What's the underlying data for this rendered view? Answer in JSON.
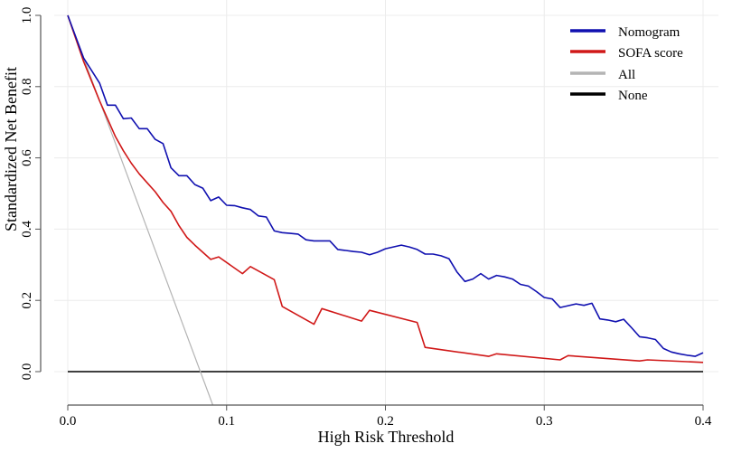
{
  "chart_data": {
    "type": "line",
    "title": "",
    "xlabel": "High Risk Threshold",
    "ylabel": "Standardized Net Benefit",
    "xlim": [
      0.0,
      0.4
    ],
    "ylim": [
      -0.094,
      1.0
    ],
    "xticks": [
      "0.0",
      "0.1",
      "0.2",
      "0.3",
      "0.4"
    ],
    "yticks": [
      "0.0",
      "0.2",
      "0.4",
      "0.6",
      "0.8",
      "1.0"
    ],
    "grid": true,
    "legend_position": "top-right",
    "series": [
      {
        "name": "Nomogram",
        "color": "#1010b0",
        "x": [
          0,
          0.005,
          0.01,
          0.015,
          0.02,
          0.025,
          0.03,
          0.035,
          0.04,
          0.045,
          0.05,
          0.055,
          0.06,
          0.065,
          0.07,
          0.075,
          0.08,
          0.085,
          0.09,
          0.095,
          0.1,
          0.105,
          0.11,
          0.115,
          0.12,
          0.125,
          0.13,
          0.135,
          0.14,
          0.145,
          0.15,
          0.155,
          0.16,
          0.165,
          0.17,
          0.175,
          0.18,
          0.185,
          0.19,
          0.195,
          0.2,
          0.205,
          0.21,
          0.215,
          0.22,
          0.225,
          0.23,
          0.235,
          0.24,
          0.245,
          0.25,
          0.255,
          0.26,
          0.265,
          0.27,
          0.275,
          0.28,
          0.285,
          0.29,
          0.295,
          0.3,
          0.305,
          0.31,
          0.315,
          0.32,
          0.325,
          0.33,
          0.335,
          0.34,
          0.345,
          0.35,
          0.355,
          0.36,
          0.365,
          0.37,
          0.375,
          0.38,
          0.385,
          0.39,
          0.395,
          0.4
        ],
        "y": [
          1.0,
          0.94,
          0.88,
          0.845,
          0.81,
          0.748,
          0.748,
          0.71,
          0.712,
          0.682,
          0.682,
          0.652,
          0.64,
          0.572,
          0.55,
          0.55,
          0.525,
          0.515,
          0.48,
          0.49,
          0.467,
          0.466,
          0.46,
          0.455,
          0.437,
          0.434,
          0.395,
          0.39,
          0.388,
          0.386,
          0.37,
          0.367,
          0.367,
          0.367,
          0.343,
          0.34,
          0.337,
          0.335,
          0.328,
          0.335,
          0.345,
          0.35,
          0.355,
          0.35,
          0.343,
          0.33,
          0.33,
          0.325,
          0.317,
          0.28,
          0.253,
          0.26,
          0.275,
          0.26,
          0.27,
          0.266,
          0.26,
          0.245,
          0.24,
          0.225,
          0.208,
          0.204,
          0.18,
          0.185,
          0.19,
          0.186,
          0.192,
          0.148,
          0.145,
          0.14,
          0.147,
          0.123,
          0.098,
          0.095,
          0.09,
          0.065,
          0.055,
          0.05,
          0.046,
          0.043,
          0.053
        ]
      },
      {
        "name": "SOFA score",
        "color": "#d01818",
        "x": [
          0,
          0.01,
          0.02,
          0.03,
          0.035,
          0.04,
          0.045,
          0.05,
          0.055,
          0.06,
          0.065,
          0.07,
          0.075,
          0.08,
          0.085,
          0.09,
          0.095,
          0.11,
          0.115,
          0.13,
          0.135,
          0.155,
          0.16,
          0.185,
          0.19,
          0.22,
          0.225,
          0.265,
          0.27,
          0.31,
          0.315,
          0.36,
          0.365,
          0.4
        ],
        "y": [
          1.0,
          0.87,
          0.76,
          0.66,
          0.62,
          0.585,
          0.555,
          0.53,
          0.505,
          0.475,
          0.45,
          0.41,
          0.377,
          0.355,
          0.335,
          0.315,
          0.322,
          0.275,
          0.295,
          0.258,
          0.183,
          0.133,
          0.177,
          0.142,
          0.172,
          0.138,
          0.068,
          0.043,
          0.05,
          0.033,
          0.045,
          0.03,
          0.033,
          0.026
        ]
      },
      {
        "name": "All",
        "color": "#b4b4b4",
        "x": [
          0,
          0.0913
        ],
        "y": [
          1.0,
          -0.094
        ]
      },
      {
        "name": "None",
        "color": "#000000",
        "x": [
          0,
          0.4
        ],
        "y": [
          0,
          0
        ]
      }
    ]
  }
}
